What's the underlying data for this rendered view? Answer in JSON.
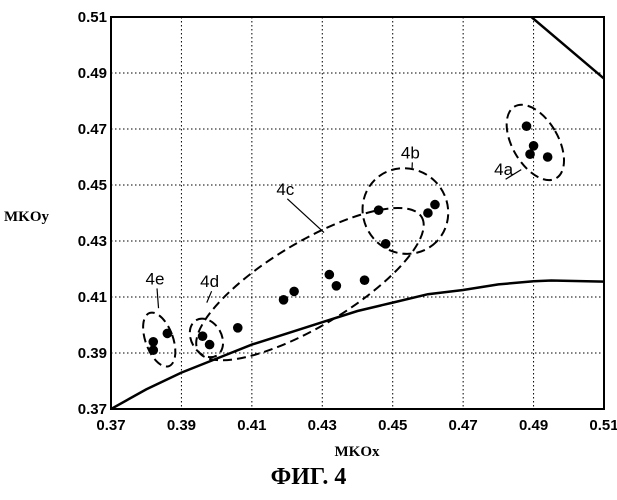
{
  "chart_data": {
    "type": "scatter",
    "xlabel": "MKOx",
    "ylabel": "MKOy",
    "xlim": [
      0.37,
      0.51
    ],
    "ylim": [
      0.37,
      0.51
    ],
    "x_ticks": [
      "0.37",
      "0.39",
      "0.41",
      "0.43",
      "0.45",
      "0.47",
      "0.49",
      "0.51"
    ],
    "y_ticks": [
      "0.37",
      "0.39",
      "0.41",
      "0.43",
      "0.45",
      "0.47",
      "0.49",
      "0.51"
    ],
    "grid": true,
    "points": [
      {
        "x": 0.382,
        "y": 0.391,
        "group": "4e"
      },
      {
        "x": 0.382,
        "y": 0.394,
        "group": "4e"
      },
      {
        "x": 0.386,
        "y": 0.397,
        "group": "4e"
      },
      {
        "x": 0.396,
        "y": 0.396,
        "group": "4d"
      },
      {
        "x": 0.398,
        "y": 0.393,
        "group": "4d"
      },
      {
        "x": 0.406,
        "y": 0.399,
        "group": "4c"
      },
      {
        "x": 0.419,
        "y": 0.409,
        "group": "4c"
      },
      {
        "x": 0.422,
        "y": 0.412,
        "group": "4c"
      },
      {
        "x": 0.432,
        "y": 0.418,
        "group": "4c"
      },
      {
        "x": 0.434,
        "y": 0.414,
        "group": "4c"
      },
      {
        "x": 0.442,
        "y": 0.416,
        "group": "4c"
      },
      {
        "x": 0.446,
        "y": 0.441,
        "group": "4b"
      },
      {
        "x": 0.448,
        "y": 0.429,
        "group": "4b"
      },
      {
        "x": 0.46,
        "y": 0.44,
        "group": "4b"
      },
      {
        "x": 0.462,
        "y": 0.443,
        "group": "4b"
      },
      {
        "x": 0.488,
        "y": 0.471,
        "group": "4a"
      },
      {
        "x": 0.489,
        "y": 0.461,
        "group": "4a"
      },
      {
        "x": 0.49,
        "y": 0.464,
        "group": "4a"
      },
      {
        "x": 0.494,
        "y": 0.46,
        "group": "4a"
      }
    ],
    "groups": [
      {
        "label": "4a",
        "cx": 0.4905,
        "cy": 0.4652,
        "rx": 0.0065,
        "ry": 0.0148,
        "angle": -30
      },
      {
        "label": "4b",
        "cx": 0.4536,
        "cy": 0.4407,
        "rx": 0.0124,
        "ry": 0.015,
        "angle": 45
      },
      {
        "label": "4c",
        "cx": 0.4265,
        "cy": 0.4146,
        "rx": 0.037,
        "ry": 0.015,
        "angle": -31
      },
      {
        "label": "4d",
        "cx": 0.3971,
        "cy": 0.3954,
        "rx": 0.0043,
        "ry": 0.0073,
        "angle": -30
      },
      {
        "label": "4e",
        "cx": 0.3837,
        "cy": 0.3948,
        "rx": 0.0039,
        "ry": 0.0101,
        "angle": -20
      }
    ],
    "group_labels": [
      {
        "label": "4a",
        "x": 0.4815,
        "y": 0.4535,
        "leader_to": [
          0.4865,
          0.4555
        ]
      },
      {
        "label": "4b",
        "x": 0.455,
        "y": 0.4595,
        "leader_to": [
          0.4555,
          0.456
        ]
      },
      {
        "label": "4c",
        "x": 0.4195,
        "y": 0.4465,
        "leader_to": [
          0.4305,
          0.433
        ]
      },
      {
        "label": "4d",
        "x": 0.398,
        "y": 0.4135,
        "leader_to": [
          0.3972,
          0.408
        ]
      },
      {
        "label": "4e",
        "x": 0.3825,
        "y": 0.4145,
        "leader_to": [
          0.3835,
          0.406
        ]
      }
    ],
    "lower_curve": [
      [
        0.37,
        0.37
      ],
      [
        0.38,
        0.377
      ],
      [
        0.39,
        0.383
      ],
      [
        0.4,
        0.388
      ],
      [
        0.41,
        0.393
      ],
      [
        0.42,
        0.397
      ],
      [
        0.43,
        0.401
      ],
      [
        0.44,
        0.405
      ],
      [
        0.45,
        0.408
      ],
      [
        0.46,
        0.411
      ],
      [
        0.47,
        0.4125
      ],
      [
        0.48,
        0.4145
      ],
      [
        0.49,
        0.4156
      ],
      [
        0.495,
        0.4159
      ],
      [
        0.51,
        0.4155
      ]
    ],
    "upper_line": [
      [
        0.4875,
        0.512
      ],
      [
        0.51,
        0.488
      ]
    ]
  },
  "figure_caption": "ФИГ. 4"
}
